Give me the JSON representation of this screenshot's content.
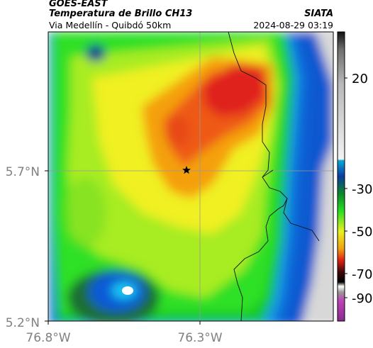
{
  "header": {
    "satellite": "GOES-EAST",
    "title": "Temperatura de Brillo CH13",
    "subtitle": "Via Medellín - Quibdó 50km",
    "organization": "SIATA",
    "datetime": "2024-08-29 03:19"
  },
  "map": {
    "lat_labels": [
      "5.7°N",
      "5.2°N"
    ],
    "lon_labels": [
      "76.8°W",
      "76.3°W"
    ],
    "marker": "star-marker"
  },
  "colorbar": {
    "tick_labels": [
      "20",
      "-30",
      "-50",
      "-70",
      "-90"
    ]
  },
  "colors": {
    "green": "#17d118",
    "yellow": "#f6f21a",
    "orange": "#f49a10",
    "red": "#e8341a",
    "blue": "#0a5ad6",
    "gray": "#d8d8d8"
  }
}
